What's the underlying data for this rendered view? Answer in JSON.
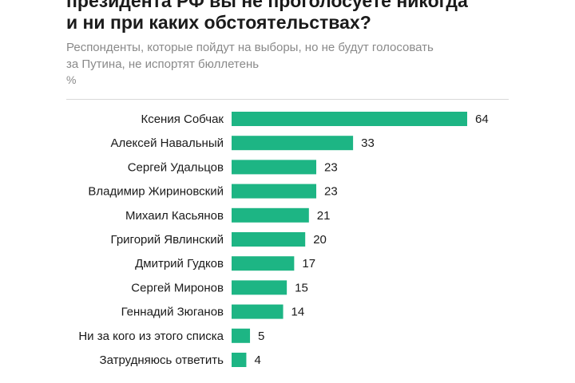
{
  "header": {
    "title_line1": "президента РФ вы не проголосуете никогда",
    "title_line2": "и ни при каких обстоятельствах?",
    "subtitle_line1": "Респонденты, которые пойдут на выборы, но не будут голосовать",
    "subtitle_line2": "за Путина, не испортят бюллетень",
    "unit": "%"
  },
  "chart_data": {
    "type": "bar",
    "orientation": "horizontal",
    "categories": [
      "Ксения Собчак",
      "Алексей Навальный",
      "Сергей Удальцов",
      "Владимир Жириновский",
      "Михаил Касьянов",
      "Григорий Явлинский",
      "Дмитрий Гудков",
      "Сергей Миронов",
      "Геннадий Зюганов",
      "Ни за кого из этого списка",
      "Затрудняюсь ответить"
    ],
    "values": [
      64,
      33,
      23,
      23,
      21,
      20,
      17,
      15,
      14,
      5,
      4
    ],
    "title": "",
    "xlabel": "",
    "ylabel": "",
    "xlim": [
      0,
      64
    ],
    "grid": false,
    "legend": "none",
    "bar_color": "#1db584"
  }
}
